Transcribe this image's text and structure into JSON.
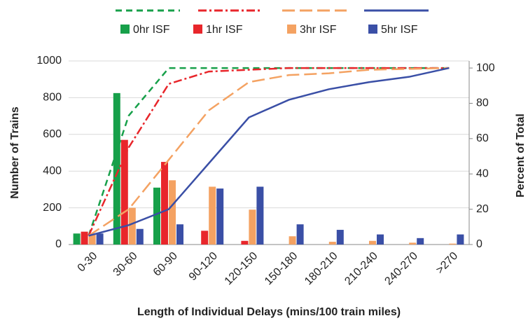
{
  "chart_data": {
    "type": "bar_line",
    "categories": [
      "0-30",
      "30-60",
      "60-90",
      "90-120",
      "120-150",
      "150-180",
      "180-210",
      "210-240",
      "240-270",
      ">270"
    ],
    "series": [
      {
        "name": "0hr ISF",
        "color": "#17a04a",
        "values": [
          60,
          825,
          310,
          0,
          0,
          0,
          0,
          0,
          0,
          0
        ]
      },
      {
        "name": "1hr ISF",
        "color": "#e8262b",
        "values": [
          70,
          570,
          450,
          75,
          20,
          0,
          0,
          0,
          0,
          0
        ]
      },
      {
        "name": "3hr ISF",
        "color": "#f4a262",
        "values": [
          60,
          200,
          350,
          315,
          190,
          45,
          15,
          20,
          10,
          5
        ]
      },
      {
        "name": "5hr ISF",
        "color": "#3a4fa6",
        "values": [
          60,
          85,
          110,
          305,
          315,
          110,
          80,
          55,
          35,
          55
        ]
      },
      {
        "type": "line",
        "axis": "y2",
        "color": "#17a04a",
        "dash": "9,6",
        "values": [
          5,
          73,
          100,
          100,
          100,
          100,
          100,
          100,
          100,
          100
        ]
      },
      {
        "type": "line",
        "axis": "y2",
        "color": "#e8262b",
        "dash": "12,4,3,4",
        "values": [
          5,
          55,
          91,
          98,
          99,
          100,
          100,
          100,
          100,
          100
        ]
      },
      {
        "type": "line",
        "axis": "y2",
        "color": "#f4a262",
        "dash": "18,7",
        "values": [
          5,
          20,
          48,
          76,
          92,
          96,
          97,
          99,
          99.5,
          100
        ]
      },
      {
        "type": "line",
        "axis": "y2",
        "color": "#3a4fa6",
        "dash": "none",
        "values": [
          5,
          11,
          20,
          46,
          72,
          82,
          88,
          92,
          95,
          100
        ]
      }
    ],
    "y_label": "Number of Trains",
    "y2_label": "Percent of Total",
    "x_label": "Length of Individual Delays (mins/100 train miles)",
    "ylim": [
      0,
      1000
    ],
    "yticks": [
      0,
      200,
      400,
      600,
      800,
      1000
    ],
    "y2lim": [
      0,
      104
    ],
    "y2ticks": [
      0,
      20,
      40,
      60,
      80,
      100
    ],
    "grid": true,
    "legend": "top"
  }
}
